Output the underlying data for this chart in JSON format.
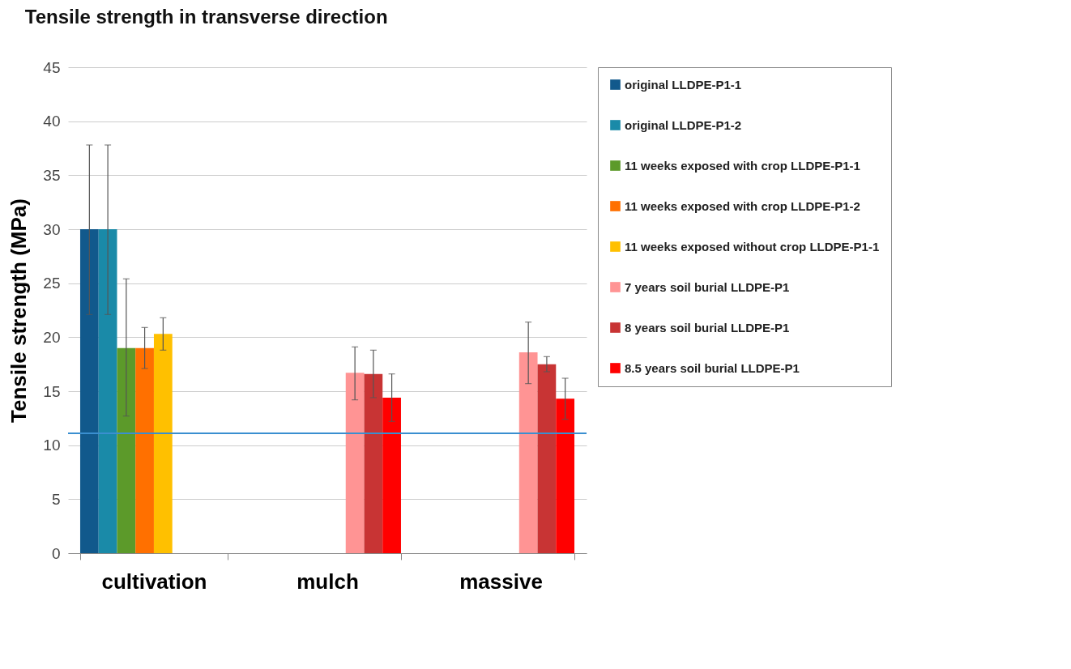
{
  "chart_data": {
    "type": "bar",
    "title": "Tensile strength in transverse direction",
    "ylabel": "Tensile strength (MPa)",
    "categories": [
      "cultivation",
      "mulch",
      "massive"
    ],
    "series": [
      {
        "name": "original LLDPE-P1-1",
        "color": "#11598c",
        "values": [
          30,
          null,
          null
        ],
        "errors": [
          [
            22.1,
            37.8
          ],
          null,
          null
        ]
      },
      {
        "name": "original LLDPE-P1-2",
        "color": "#1a8aa8",
        "values": [
          30,
          null,
          null
        ],
        "errors": [
          [
            22.1,
            37.8
          ],
          null,
          null
        ]
      },
      {
        "name": "11 weeks exposed with crop LLDPE-P1-1",
        "color": "#5c9a2a",
        "values": [
          19,
          null,
          null
        ],
        "errors": [
          [
            12.7,
            25.4
          ],
          null,
          null
        ]
      },
      {
        "name": "11 weeks exposed with crop LLDPE-P1-2",
        "color": "#ff7000",
        "values": [
          19,
          null,
          null
        ],
        "errors": [
          [
            17.1,
            20.9
          ],
          null,
          null
        ]
      },
      {
        "name": "11 weeks exposed without crop LLDPE-P1-1",
        "color": "#ffc000",
        "values": [
          20.3,
          null,
          null
        ],
        "errors": [
          [
            18.8,
            21.8
          ],
          null,
          null
        ]
      },
      {
        "name": "7 years soil burial LLDPE-P1",
        "color": "#ff9494",
        "values": [
          null,
          16.7,
          18.6
        ],
        "errors": [
          null,
          [
            14.2,
            19.1
          ],
          [
            15.7,
            21.4
          ]
        ]
      },
      {
        "name": "8 years soil burial LLDPE-P1",
        "color": "#c83434",
        "values": [
          null,
          16.6,
          17.5
        ],
        "errors": [
          null,
          [
            14.4,
            18.8
          ],
          [
            16.8,
            18.2
          ]
        ]
      },
      {
        "name": "8.5 years soil burial LLDPE-P1",
        "color": "#ff0000",
        "values": [
          null,
          14.4,
          14.3
        ],
        "errors": [
          null,
          2.2,
          1.9
        ]
      }
    ],
    "ylim": [
      0,
      45
    ],
    "yticks": [
      0,
      5,
      10,
      15,
      20,
      25,
      30,
      35,
      40,
      45
    ],
    "grid": "y",
    "legend": "right",
    "ref_lines": [
      {
        "axis": "y",
        "value": 11.1,
        "color": "#3a8fd0"
      }
    ]
  }
}
